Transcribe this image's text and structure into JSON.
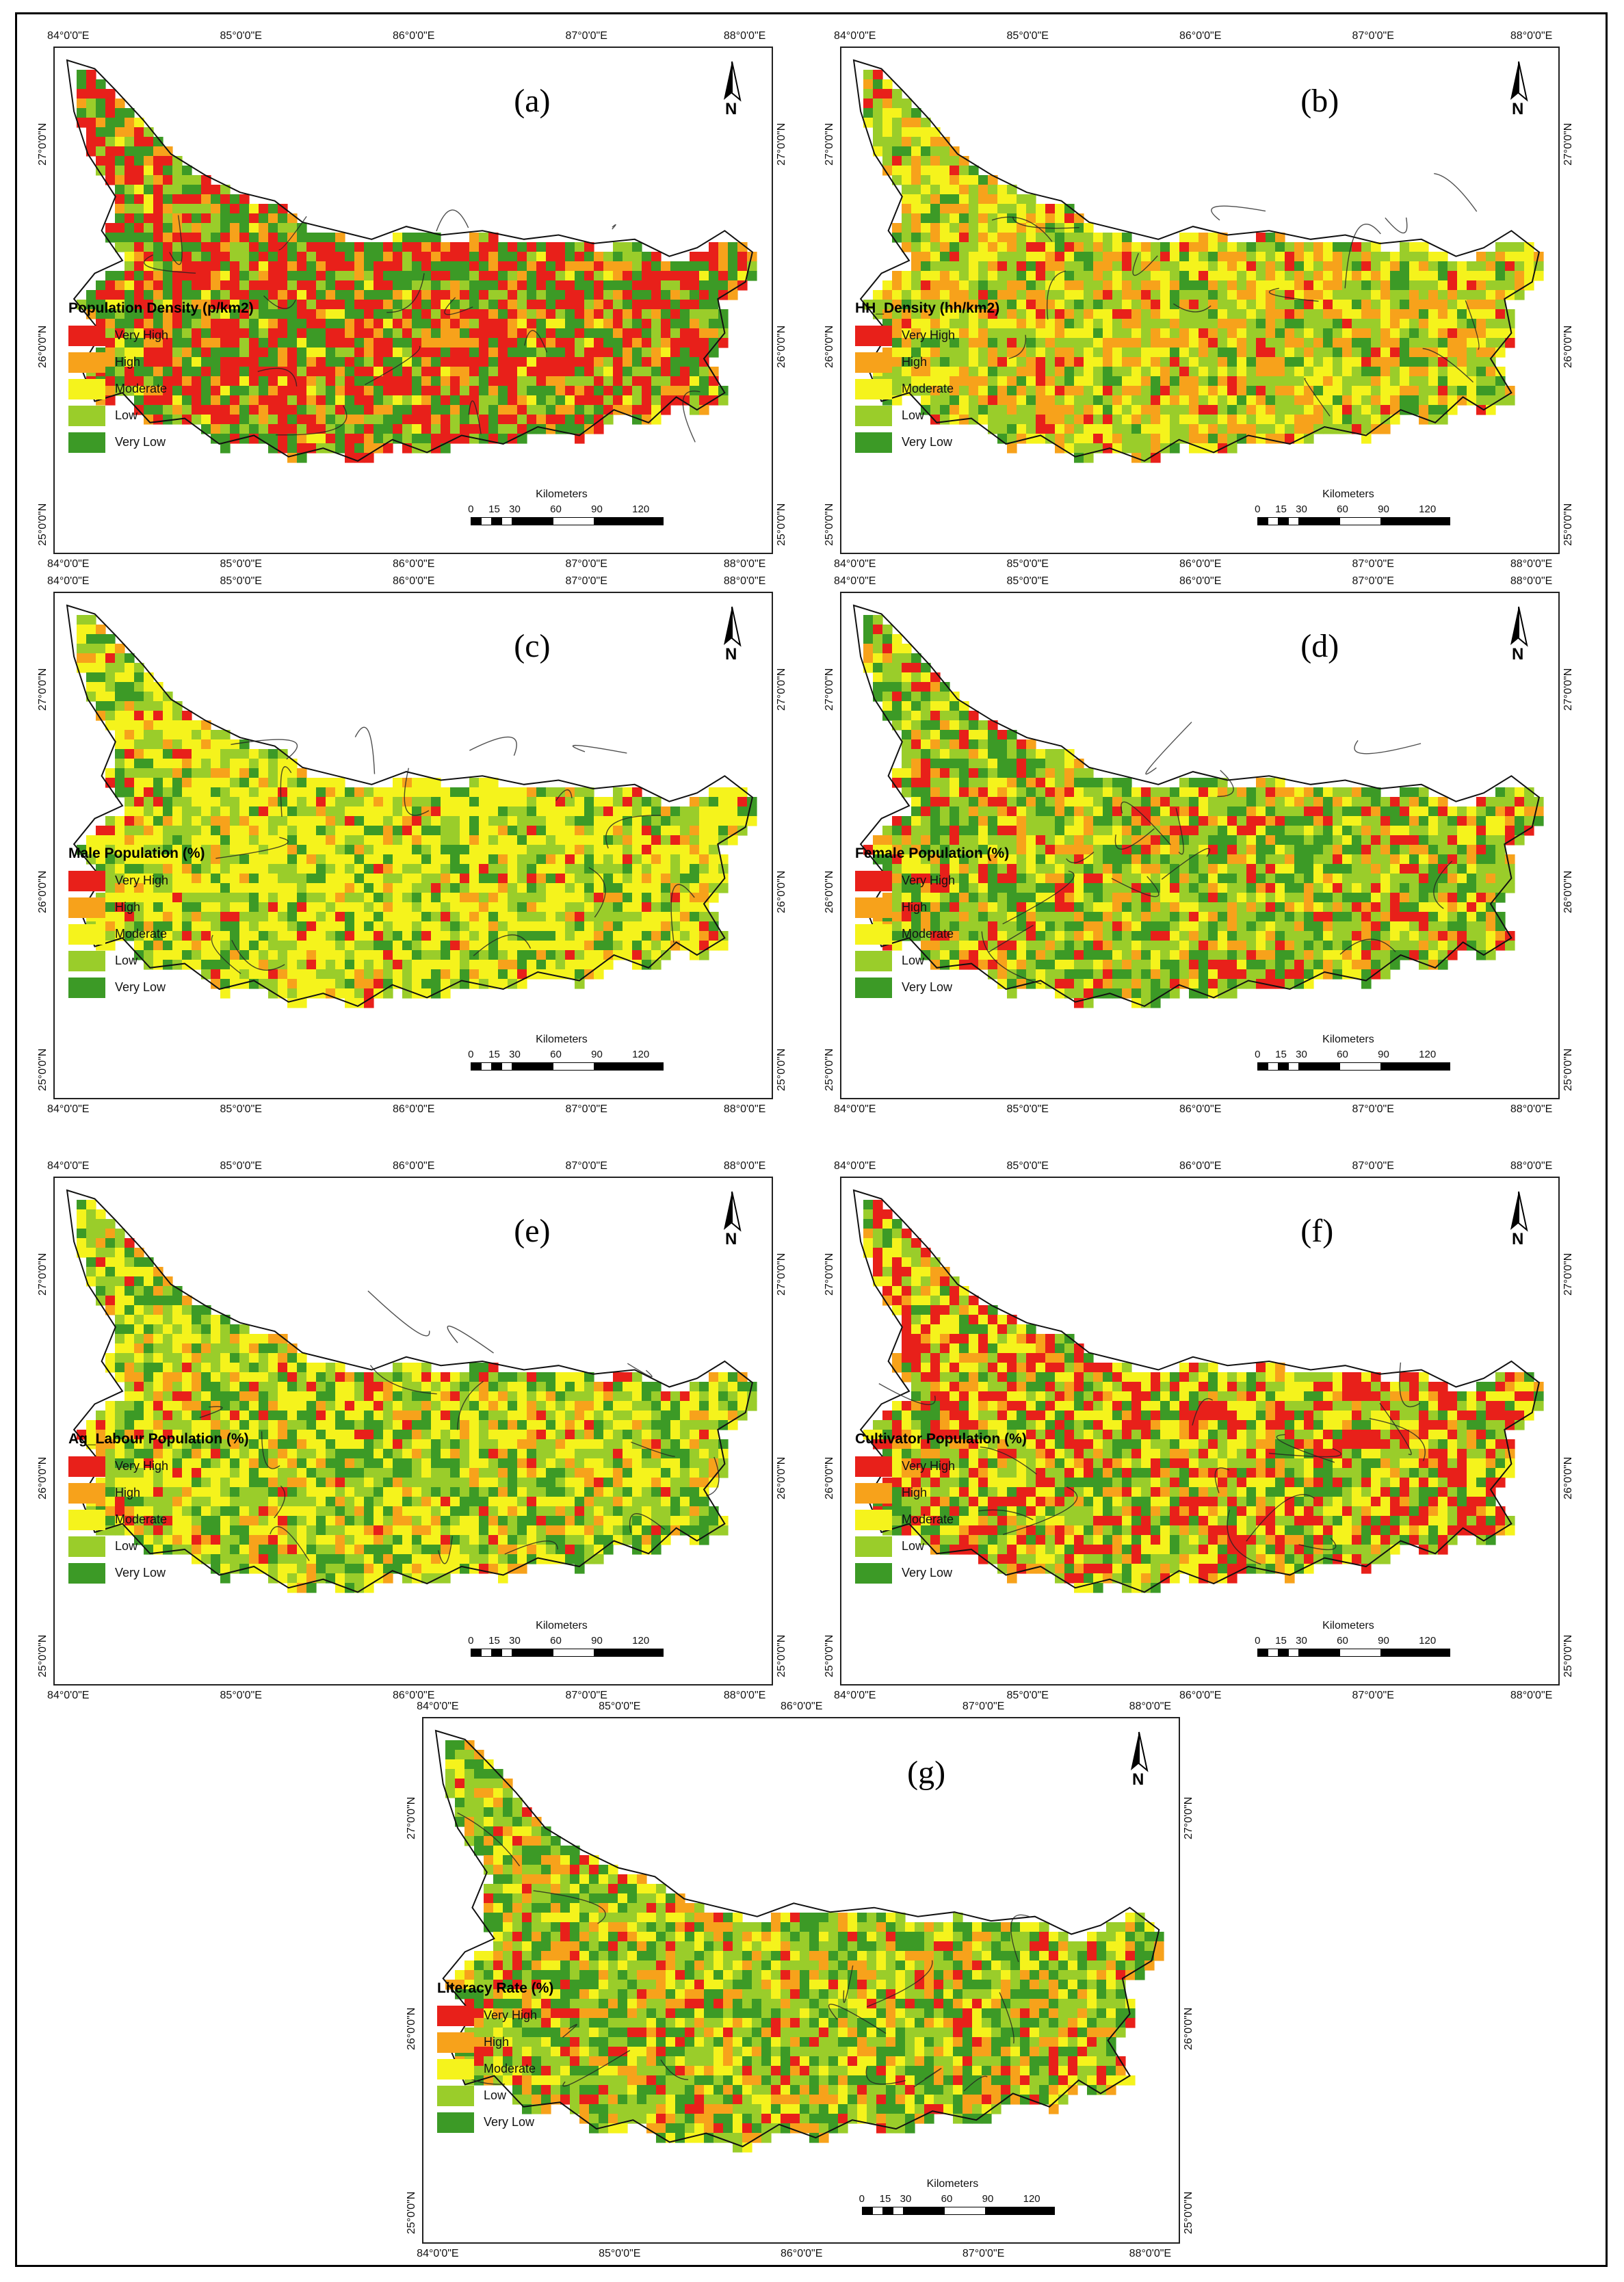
{
  "figure": {
    "classes": [
      "Very High",
      "High",
      "Moderate",
      "Low",
      "Very Low"
    ],
    "colors": {
      "Very High": "#e8201a",
      "High": "#f7a21b",
      "Moderate": "#f5f31c",
      "Low": "#9acd2a",
      "Very Low": "#3c9a26"
    },
    "north_label": "N",
    "scale_title": "Kilometers",
    "scale_ticks": [
      "0",
      "15",
      "30",
      "60",
      "90",
      "120"
    ],
    "lon_labels": [
      "84°0'0\"E",
      "85°0'0\"E",
      "86°0'0\"E",
      "87°0'0\"E",
      "88°0'0\"E"
    ],
    "lat_labels": [
      "27°0'0\"N",
      "26°0'0\"N",
      "25°0'0\"N"
    ],
    "panels": [
      {
        "id": "a",
        "label": "(a)",
        "legend_title": "Population Density (p/km2)"
      },
      {
        "id": "b",
        "label": "(b)",
        "legend_title": "HH_Density (hh/km2)"
      },
      {
        "id": "c",
        "label": "(c)",
        "legend_title": "Male Population (%)"
      },
      {
        "id": "d",
        "label": "(d)",
        "legend_title": "Female Population (%)"
      },
      {
        "id": "e",
        "label": "(e)",
        "legend_title": "Ag_Labour Population (%)"
      },
      {
        "id": "f",
        "label": "(f)",
        "legend_title": "Cultivator Population (%)"
      },
      {
        "id": "g",
        "label": "(g)",
        "legend_title": "Literacy Rate (%)"
      }
    ]
  }
}
